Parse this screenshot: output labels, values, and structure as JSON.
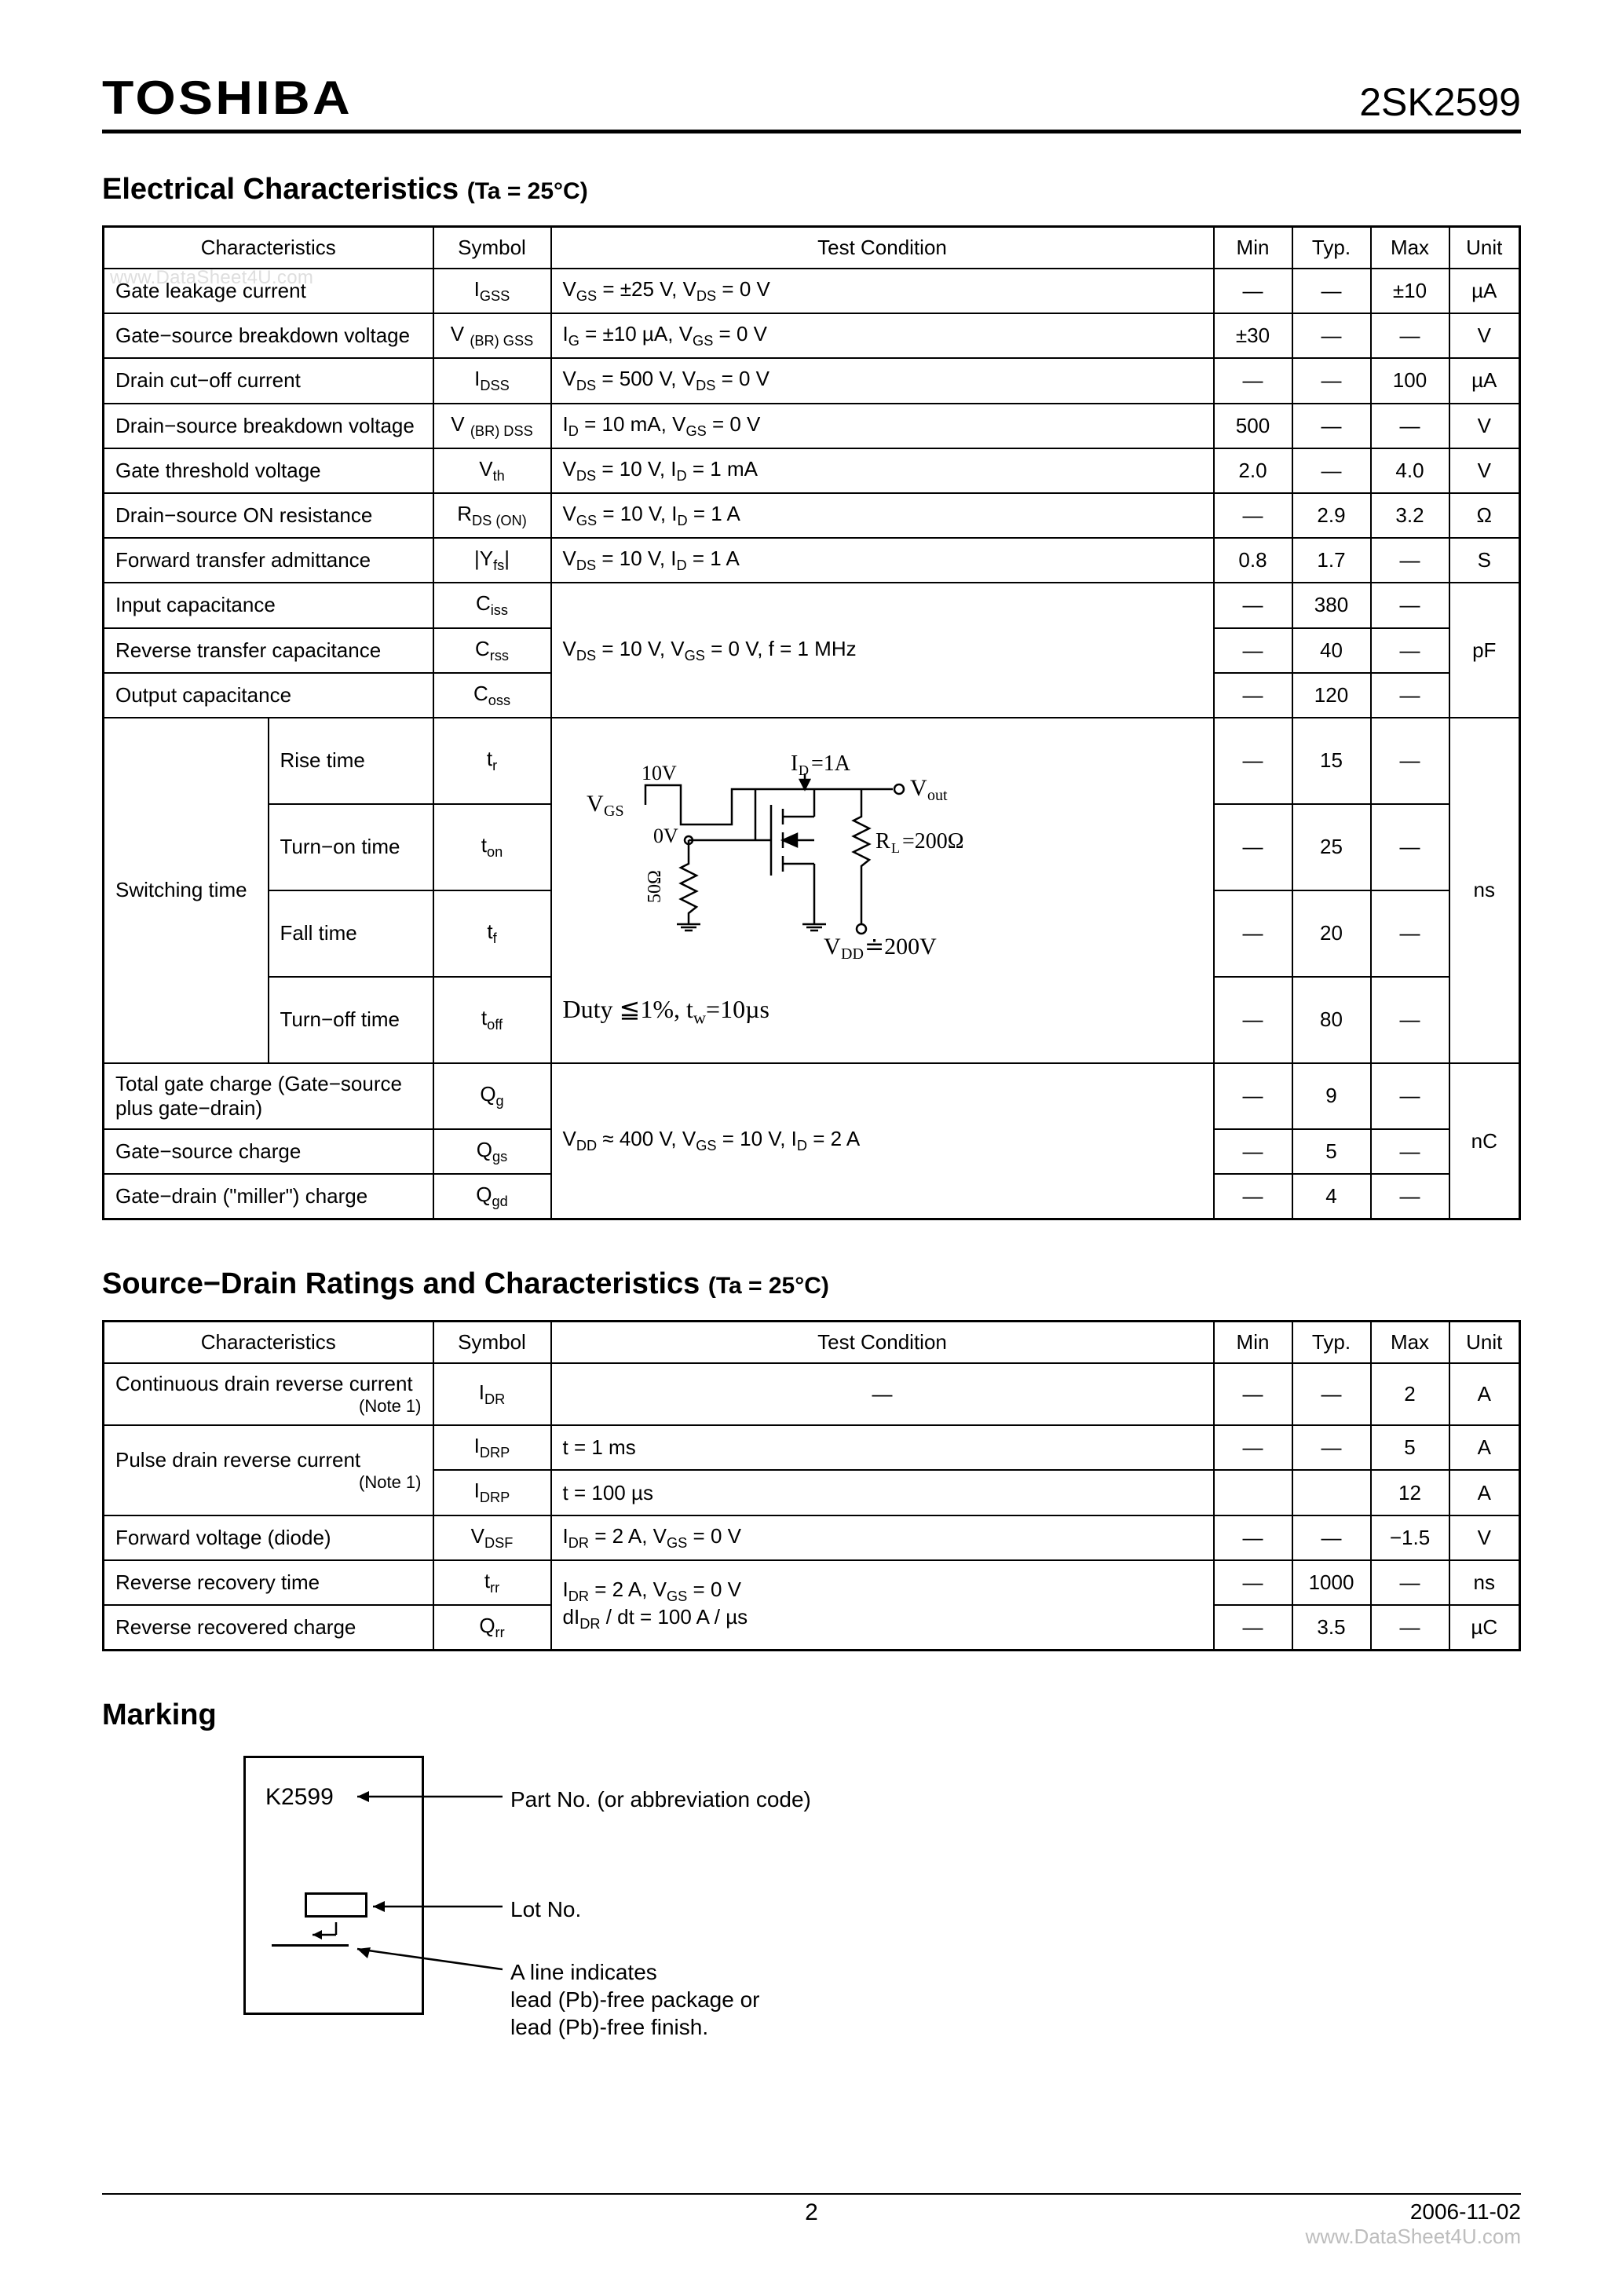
{
  "header": {
    "logo": "TOSHIBA",
    "partno": "2SK2599"
  },
  "watermark": "www.DataSheet4U.com",
  "section1": {
    "title": "Electrical Characteristics",
    "condition": "(Ta = 25°C)",
    "columns": [
      "Characteristics",
      "Symbol",
      "Test Condition",
      "Min",
      "Typ.",
      "Max",
      "Unit"
    ]
  },
  "ec_rows": {
    "r1": {
      "char": "Gate leakage current",
      "sym": "I",
      "sub": "GSS",
      "cond": "V<sub>GS</sub> = ±25 V, V<sub>DS</sub> = 0 V",
      "min": "―",
      "typ": "―",
      "max": "±10",
      "unit": "µA"
    },
    "r2": {
      "char": "Gate−source breakdown voltage",
      "sym": "V ",
      "sub": "(BR) GSS",
      "cond": "I<sub>G</sub> = ±10 µA, V<sub>GS</sub> = 0 V",
      "min": "±30",
      "typ": "―",
      "max": "―",
      "unit": "V"
    },
    "r3": {
      "char": "Drain cut−off current",
      "sym": "I",
      "sub": "DSS",
      "cond": "V<sub>DS</sub> = 500 V, V<sub>DS</sub> = 0 V",
      "min": "―",
      "typ": "―",
      "max": "100",
      "unit": "µA"
    },
    "r4": {
      "char": "Drain−source breakdown voltage",
      "sym": "V ",
      "sub": "(BR) DSS",
      "cond": "I<sub>D</sub> = 10 mA, V<sub>GS</sub> = 0 V",
      "min": "500",
      "typ": "―",
      "max": "―",
      "unit": "V"
    },
    "r5": {
      "char": "Gate threshold voltage",
      "sym": "V",
      "sub": "th",
      "cond": "V<sub>DS</sub> = 10 V, I<sub>D</sub> = 1 mA",
      "min": "2.0",
      "typ": "―",
      "max": "4.0",
      "unit": "V"
    },
    "r6": {
      "char": "Drain−source ON resistance",
      "sym": "R",
      "sub": "DS (ON)",
      "cond": "V<sub>GS</sub> = 10 V, I<sub>D</sub> = 1 A",
      "min": "―",
      "typ": "2.9",
      "max": "3.2",
      "unit": "Ω"
    },
    "r7": {
      "char": "Forward transfer admittance",
      "sym": "|Y",
      "sub": "fs",
      "sym_suffix": "|",
      "cond": "V<sub>DS</sub> = 10 V, I<sub>D</sub> = 1 A",
      "min": "0.8",
      "typ": "1.7",
      "max": "―",
      "unit": "S"
    },
    "r8": {
      "char": "Input capacitance",
      "sym": "C",
      "sub": "iss",
      "min": "―",
      "typ": "380",
      "max": "―"
    },
    "r9": {
      "char": "Reverse transfer capacitance",
      "sym": "C",
      "sub": "rss",
      "cond": "V<sub>DS</sub> = 10 V, V<sub>GS</sub> = 0 V, f = 1 MHz",
      "min": "―",
      "typ": "40",
      "max": "―",
      "unit": "pF"
    },
    "r10": {
      "char": "Output capacitance",
      "sym": "C",
      "sub": "oss",
      "min": "―",
      "typ": "120",
      "max": "―"
    },
    "sw_label": "Switching time",
    "r11": {
      "char": "Rise time",
      "sym": "t",
      "sub": "r",
      "min": "―",
      "typ": "15",
      "max": "―"
    },
    "r12": {
      "char": "Turn−on time",
      "sym": "t",
      "sub": "on",
      "min": "―",
      "typ": "25",
      "max": "―"
    },
    "r13": {
      "char": "Fall time",
      "sym": "t",
      "sub": "f",
      "min": "―",
      "typ": "20",
      "max": "―"
    },
    "r14": {
      "char": "Turn−off time",
      "sym": "t",
      "sub": "off",
      "min": "―",
      "typ": "80",
      "max": "―"
    },
    "sw_unit": "ns",
    "sw_cond_duty": "Duty ≦1%, t<sub>w</sub>=10µs",
    "r15": {
      "char": "Total gate charge (Gate−source plus gate−drain)",
      "sym": "Q",
      "sub": "g",
      "min": "―",
      "typ": "9",
      "max": "―"
    },
    "r16": {
      "char": "Gate−source charge",
      "sym": "Q",
      "sub": "gs",
      "cond": "V<sub>DD</sub> ≈ 400 V, V<sub>GS</sub> = 10 V, I<sub>D</sub> = 2 A",
      "min": "―",
      "typ": "5",
      "max": "―",
      "unit": "nC"
    },
    "r17": {
      "char": "Gate−drain (\"miller\") charge",
      "sym": "Q",
      "sub": "gd",
      "min": "―",
      "typ": "4",
      "max": "―"
    }
  },
  "circuit": {
    "vgs": "V<sub>GS</sub>",
    "v10": "10V",
    "v0": "0V",
    "id": "I<sub>D</sub>=1A",
    "vout": "V<sub>out</sub>",
    "rl": "R<sub>L</sub>=200Ω",
    "r50": "50Ω",
    "vdd": "V<sub>DD</sub>≐200V"
  },
  "section2": {
    "title": "Source−Drain Ratings and Characteristics",
    "condition": "(Ta = 25°C)",
    "columns": [
      "Characteristics",
      "Symbol",
      "Test Condition",
      "Min",
      "Typ.",
      "Max",
      "Unit"
    ]
  },
  "sd_rows": {
    "r1": {
      "char": "Continuous drain reverse current",
      "note": "(Note 1)",
      "sym": "I",
      "sub": "DR",
      "cond": "―",
      "min": "―",
      "typ": "―",
      "max": "2",
      "unit": "A"
    },
    "r2": {
      "char": "Pulse drain reverse current",
      "note": "(Note 1)",
      "sym": "I",
      "sub": "DRP",
      "cond": "t = 1 ms",
      "min": "―",
      "typ": "―",
      "max": "5",
      "unit": "A"
    },
    "r3": {
      "sym": "I",
      "sub": "DRP",
      "cond": "t = 100 µs",
      "min": "",
      "typ": "",
      "max": "12",
      "unit": "A"
    },
    "r4": {
      "char": "Forward voltage (diode)",
      "sym": "V",
      "sub": "DSF",
      "cond": "I<sub>DR</sub> = 2 A, V<sub>GS</sub> = 0 V",
      "min": "―",
      "typ": "―",
      "max": "−1.5",
      "unit": "V"
    },
    "r5": {
      "char": "Reverse recovery time",
      "sym": "t",
      "sub": "rr",
      "cond": "I<sub>DR</sub> = 2 A, V<sub>GS</sub> = 0 V<br>dI<sub>DR</sub> / dt = 100 A / µs",
      "min": "―",
      "typ": "1000",
      "max": "―",
      "unit": "ns"
    },
    "r6": {
      "char": "Reverse recovered charge",
      "sym": "Q",
      "sub": "rr",
      "min": "―",
      "typ": "3.5",
      "max": "―",
      "unit": "µC"
    }
  },
  "marking": {
    "heading": "Marking",
    "part": "K2599",
    "lbl_part": "Part No. (or abbreviation code)",
    "lbl_lot": "Lot No.",
    "lbl_line": "A line indicates\nlead (Pb)-free package or\nlead (Pb)-free finish."
  },
  "footer": {
    "page": "2",
    "date": "2006-11-02",
    "site": "www.DataSheet4U.com"
  }
}
